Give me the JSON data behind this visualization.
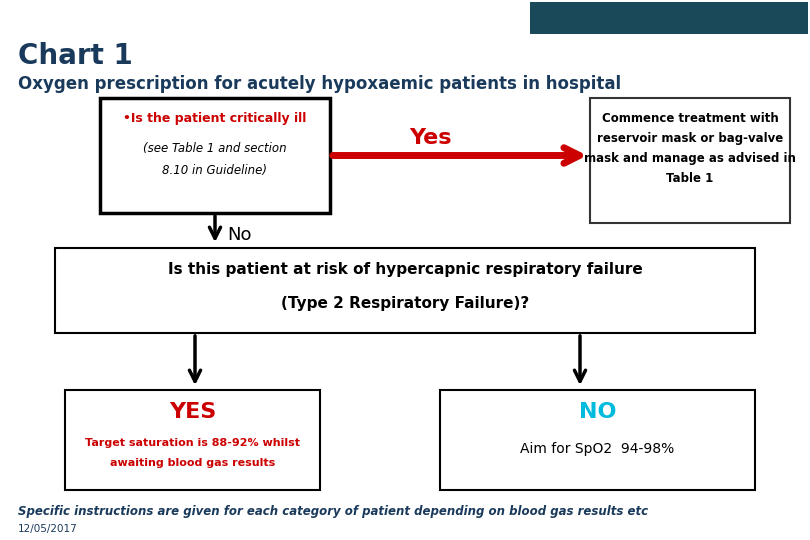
{
  "title": "Chart 1",
  "subtitle": "Oxygen prescription for acutely hypoxaemic patients in hospital",
  "title_color": "#1a3a5c",
  "subtitle_color": "#1a3a5c",
  "header_bar_color": "#1a4a5a",
  "bg_color": "#ffffff",
  "box1_text_line1": "•Is the patient critically ill",
  "box1_text_line2": "(see Table 1 and section",
  "box1_text_line3": "8.10 in Guideline)",
  "box1_text_color": "#cc0000",
  "box1_italic_color": "#000000",
  "box1_border": "#000000",
  "box1_bg": "#ffffff",
  "yes_label": "Yes",
  "yes_color": "#cc0000",
  "box2_line1": "Commence treatment with",
  "box2_line2": "reservoir mask or bag-valve",
  "box2_line3": "mask and manage as advised in",
  "box2_line4": "Table 1",
  "box2_text_color": "#000000",
  "box2_border": "#333333",
  "box2_bg": "#ffffff",
  "no_label": "No",
  "no_color": "#000000",
  "box3_line1": "Is this patient at risk of hypercapnic respiratory failure",
  "box3_line2": "(Type 2 Respiratory Failure)?",
  "box3_text_color": "#000000",
  "box3_border": "#000000",
  "box3_bg": "#ffffff",
  "box4_line1": "YES",
  "box4_line2": "Target saturation is 88-92% whilst",
  "box4_line3": "awaiting blood gas results",
  "box4_text_color1": "#cc0000",
  "box4_text_color2": "#cc0000",
  "box4_border": "#000000",
  "box4_bg": "#ffffff",
  "box5_line1": "NO",
  "box5_line2": "Aim for SpO2  94-98%",
  "box5_text_color1": "#00bbdd",
  "box5_text_color2": "#000000",
  "box5_border": "#000000",
  "box5_bg": "#ffffff",
  "footer_line1": "Specific instructions are given for each category of patient depending on blood gas results etc",
  "footer_line2": "12/05/2017",
  "footer_color": "#1a3a5c"
}
